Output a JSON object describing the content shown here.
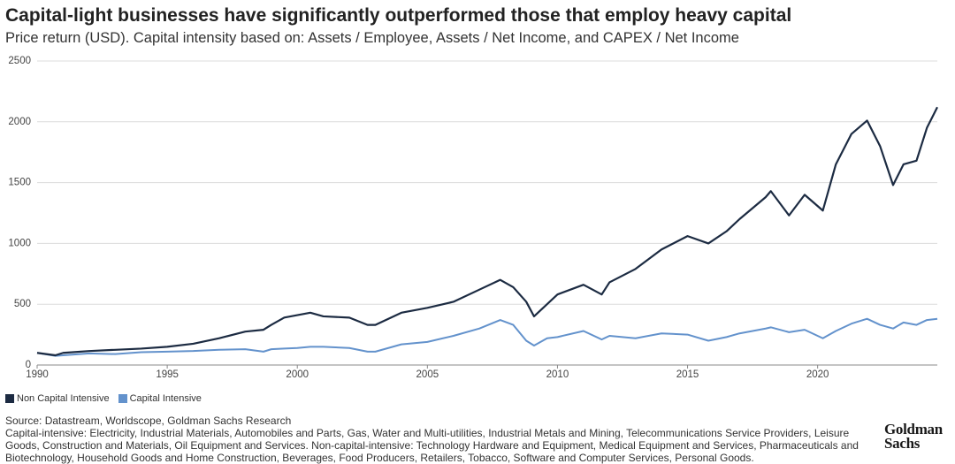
{
  "chart_data": {
    "type": "line",
    "title": "Capital-light businesses have significantly outperformed those that employ heavy capital",
    "subtitle": "Price return (USD). Capital intensity based on: Assets / Employee, Assets / Net Income, and CAPEX / Net Income",
    "x": [
      1990,
      1990.7,
      1991,
      1992,
      1993,
      1994,
      1995,
      1996,
      1997,
      1998,
      1998.7,
      1999,
      1999.5,
      2000,
      2000.5,
      2001,
      2002,
      2002.7,
      2003,
      2003.5,
      2004,
      2005,
      2006,
      2007,
      2007.8,
      2008.3,
      2008.8,
      2009.1,
      2009.6,
      2010,
      2011,
      2011.7,
      2012,
      2013,
      2014,
      2015,
      2015.8,
      2016.5,
      2017,
      2018,
      2018.2,
      2018.9,
      2019.5,
      2020.2,
      2020.7,
      2021.3,
      2021.9,
      2022.4,
      2022.9,
      2023.3,
      2023.8,
      2024.2,
      2024.6
    ],
    "series": [
      {
        "name": "Non Capital Intensive",
        "color": "#1c2b42",
        "values": [
          100,
          80,
          100,
          115,
          125,
          135,
          150,
          175,
          220,
          275,
          290,
          330,
          390,
          410,
          430,
          400,
          390,
          330,
          330,
          380,
          430,
          470,
          520,
          620,
          700,
          640,
          520,
          400,
          500,
          580,
          660,
          580,
          680,
          790,
          950,
          1060,
          1000,
          1100,
          1200,
          1380,
          1430,
          1230,
          1400,
          1270,
          1650,
          1900,
          2010,
          1800,
          1480,
          1650,
          1680,
          1950,
          2120
        ]
      },
      {
        "name": "Capital Intensive",
        "color": "#6392cc",
        "values": [
          100,
          75,
          80,
          95,
          90,
          105,
          110,
          115,
          125,
          130,
          110,
          130,
          135,
          140,
          150,
          150,
          140,
          110,
          110,
          140,
          170,
          190,
          240,
          300,
          370,
          330,
          200,
          160,
          220,
          230,
          280,
          210,
          240,
          220,
          260,
          250,
          200,
          230,
          260,
          300,
          310,
          270,
          290,
          220,
          280,
          340,
          380,
          330,
          300,
          350,
          330,
          370,
          380
        ]
      }
    ],
    "xlim": [
      1990,
      2024.6
    ],
    "xticks": [
      1990,
      1995,
      2000,
      2005,
      2010,
      2015,
      2020
    ],
    "ylim": [
      0,
      2500
    ],
    "yticks": [
      0,
      500,
      1000,
      1500,
      2000,
      2500
    ],
    "grid": true,
    "source": "Source: Datastream, Worldscope, Goldman Sachs Research",
    "note": "Capital-intensive: Electricity, Industrial Materials, Automobiles and Parts, Gas, Water and Multi-utilities, Industrial Metals and Mining, Telecommunications Service Providers, Leisure Goods, Construction and Materials, Oil Equipment and Services. Non-capital-intensive: Technology Hardware and Equipment, Medical Equipment and Services, Pharmaceuticals and Biotechnology, Household Goods and Home Construction, Beverages, Food Producers, Retailers, Tobacco, Software and Computer Services, Personal Goods.",
    "logo": "Goldman Sachs"
  }
}
